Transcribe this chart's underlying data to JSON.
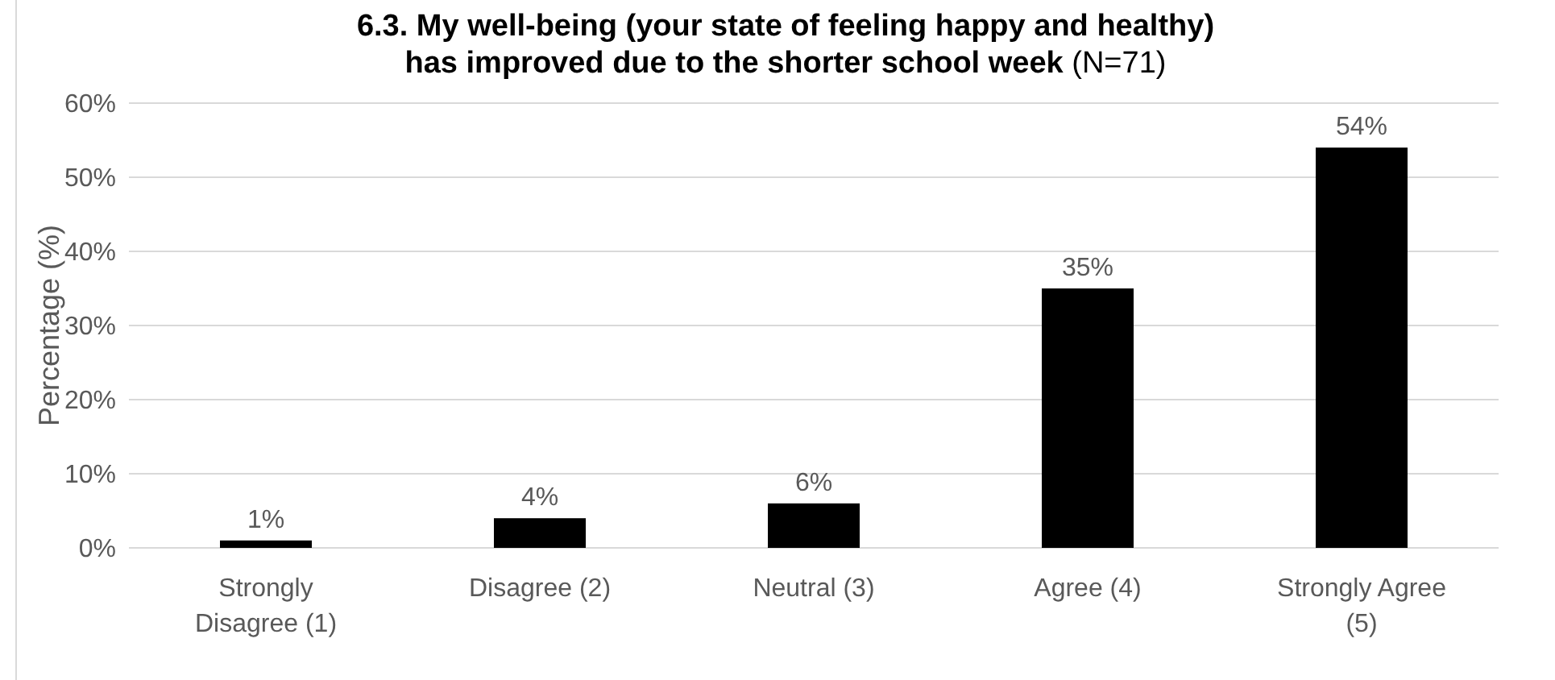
{
  "chart_data": {
    "type": "bar",
    "title": "6.3. My well-being (your state of feeling happy and healthy) has improved due to the shorter school week",
    "subtitle": "(N=71)",
    "ylabel": "Percentage (%)",
    "categories": [
      "Strongly Disagree (1)",
      "Disagree (2)",
      "Neutral (3)",
      "Agree (4)",
      "Strongly Agree (5)"
    ],
    "values": [
      1,
      4,
      6,
      35,
      54
    ],
    "color": "#000000",
    "value_labels": [
      "1%",
      "4%",
      "6%",
      "35%",
      "54%"
    ],
    "ylim": [
      0,
      60
    ],
    "yticks": [
      {
        "value": 0,
        "label": "0%"
      },
      {
        "value": 10,
        "label": "10%"
      },
      {
        "value": 20,
        "label": "20%"
      },
      {
        "value": 30,
        "label": "30%"
      },
      {
        "value": 40,
        "label": "40%"
      },
      {
        "value": 50,
        "label": "50%"
      },
      {
        "value": 60,
        "label": "60%"
      }
    ],
    "grid": "y"
  }
}
